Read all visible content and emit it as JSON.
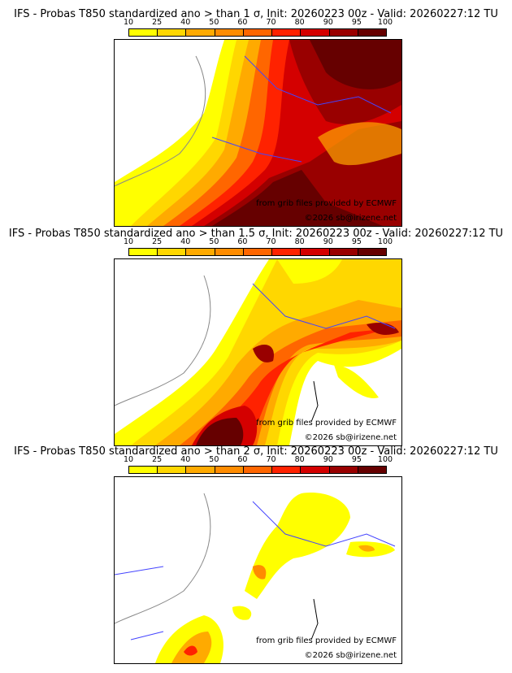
{
  "panels": [
    {
      "title": "IFS - Probas T850  standardized ano > than 1 σ, Init: 20260223 00z - Valid: 20260227:12 TU"
    },
    {
      "title": "IFS - Probas T850  standardized ano > than 1.5 σ, Init: 20260223 00z - Valid: 20260227:12 TU"
    },
    {
      "title": "IFS - Probas T850  standardized ano > than 2 σ, Init: 20260223 00z - Valid: 20260227:12 TU"
    }
  ],
  "colorbar": {
    "ticks": [
      "10",
      "25",
      "40",
      "50",
      "60",
      "70",
      "80",
      "90",
      "95",
      "100"
    ],
    "colors": [
      "#ffff00",
      "#ffd700",
      "#ffaa00",
      "#ff8c00",
      "#ff6600",
      "#ff2200",
      "#d40000",
      "#990000",
      "#660000"
    ]
  },
  "credits": {
    "source": "from grib files provided by ECMWF",
    "copyright": "©2026 sb@irizene.net"
  }
}
